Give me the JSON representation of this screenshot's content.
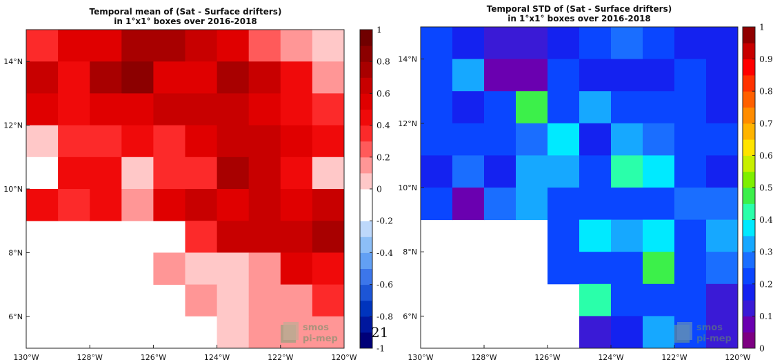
{
  "page_number": "21",
  "watermark": {
    "line1": "smos",
    "line2": "pi-mep"
  },
  "chart_data": [
    {
      "type": "heatmap",
      "title_lines": [
        "Temporal mean of (Sat - Surface drifters)",
        "in 1°x1° boxes over 2016-2018"
      ],
      "x_ticks": [
        "130°W",
        "128°W",
        "126°W",
        "124°W",
        "122°W",
        "120°W"
      ],
      "y_ticks": [
        "14°N",
        "12°N",
        "10°N",
        "8°N",
        "6°N"
      ],
      "lon_range": [
        -130,
        -120
      ],
      "lat_range": [
        5,
        15
      ],
      "colorbar": {
        "ticks": [
          "1",
          "0.8",
          "0.6",
          "0.4",
          "0.2",
          "0",
          "-0.2",
          "-0.4",
          "-0.6",
          "-0.8",
          "-1"
        ],
        "range": [
          -1,
          1
        ],
        "colors": [
          "#000078",
          "#00179e",
          "#0034bd",
          "#1c55d6",
          "#3c76ea",
          "#62a0f4",
          "#8cbef7",
          "#bdd8fb",
          "#ffffff",
          "#ffffff",
          "#ffc8c8",
          "#ff9696",
          "#ff5a5a",
          "#fc2a2a",
          "#f00a0a",
          "#e00000",
          "#c80000",
          "#a80000",
          "#8c0000",
          "#700000"
        ]
      },
      "cells": [
        [
          0.35,
          0.55,
          0.55,
          0.75,
          0.75,
          0.6,
          0.55,
          0.25,
          0.15,
          0.0
        ],
        [
          0.6,
          0.4,
          0.7,
          0.85,
          0.55,
          0.55,
          0.7,
          0.6,
          0.45,
          0.15
        ],
        [
          0.55,
          0.4,
          0.55,
          0.55,
          0.6,
          0.6,
          0.6,
          0.55,
          0.45,
          0.3
        ],
        [
          0.0,
          0.3,
          0.3,
          0.4,
          0.3,
          0.55,
          0.6,
          0.6,
          0.55,
          0.45
        ],
        [
          -0.15,
          0.4,
          0.4,
          0.0,
          0.3,
          0.3,
          0.75,
          0.6,
          0.45,
          0.0
        ],
        [
          0.45,
          0.3,
          0.4,
          0.15,
          0.55,
          0.6,
          0.55,
          0.6,
          0.55,
          0.6
        ],
        [
          null,
          null,
          null,
          null,
          null,
          0.3,
          0.6,
          0.6,
          0.6,
          0.75
        ],
        [
          null,
          null,
          null,
          null,
          0.15,
          0.0,
          0.0,
          0.15,
          0.55,
          0.4
        ],
        [
          null,
          null,
          null,
          null,
          null,
          0.15,
          0.0,
          0.15,
          0.15,
          0.3
        ],
        [
          null,
          null,
          null,
          null,
          null,
          -0.15,
          0.0,
          0.15,
          0.15,
          0.15
        ]
      ]
    },
    {
      "type": "heatmap",
      "title_lines": [
        "Temporal STD of (Sat - Surface drifters)",
        "in 1°x1° boxes over 2016-2018"
      ],
      "x_ticks": [
        "130°W",
        "128°W",
        "126°W",
        "124°W",
        "122°W",
        "120°W"
      ],
      "y_ticks": [
        "14°N",
        "12°N",
        "10°N",
        "8°N",
        "6°N"
      ],
      "lon_range": [
        -130,
        -120
      ],
      "lat_range": [
        5,
        15
      ],
      "colorbar": {
        "ticks": [
          "1",
          "0.9",
          "0.8",
          "0.7",
          "0.6",
          "0.5",
          "0.4",
          "0.3",
          "0.2",
          "0.1",
          "0"
        ],
        "range": [
          0,
          1
        ],
        "colors": [
          "#7d0082",
          "#6a00b0",
          "#3a1ad6",
          "#1422f0",
          "#0a46ff",
          "#1a6eff",
          "#16a8ff",
          "#00eaff",
          "#2affaa",
          "#3cf04a",
          "#7ef000",
          "#c8f000",
          "#ffe400",
          "#ffb400",
          "#ff8c00",
          "#ff6000",
          "#ff3200",
          "#ff0000",
          "#c80000",
          "#900000"
        ]
      },
      "cells": [
        [
          0.2,
          0.15,
          0.1,
          0.1,
          0.15,
          0.2,
          0.25,
          0.2,
          0.15,
          0.15
        ],
        [
          0.2,
          0.3,
          0.05,
          0.05,
          0.2,
          0.15,
          0.15,
          0.15,
          0.2,
          0.15
        ],
        [
          0.2,
          0.15,
          0.2,
          0.45,
          0.2,
          0.3,
          0.2,
          0.2,
          0.2,
          0.15
        ],
        [
          0.2,
          0.2,
          0.2,
          0.25,
          0.35,
          0.15,
          0.3,
          0.25,
          0.2,
          0.2
        ],
        [
          0.15,
          0.25,
          0.15,
          0.3,
          0.3,
          0.2,
          0.4,
          0.35,
          0.2,
          0.15
        ],
        [
          0.2,
          0.05,
          0.25,
          0.3,
          0.2,
          0.2,
          0.2,
          0.2,
          0.25,
          0.25
        ],
        [
          null,
          null,
          null,
          null,
          0.2,
          0.35,
          0.3,
          0.35,
          0.2,
          0.3
        ],
        [
          null,
          null,
          null,
          null,
          0.2,
          0.2,
          0.2,
          0.45,
          0.2,
          0.25
        ],
        [
          null,
          null,
          null,
          null,
          null,
          0.4,
          0.2,
          0.2,
          0.2,
          0.1
        ],
        [
          null,
          null,
          null,
          null,
          null,
          0.1,
          0.15,
          0.3,
          0.2,
          0.1
        ]
      ]
    }
  ]
}
